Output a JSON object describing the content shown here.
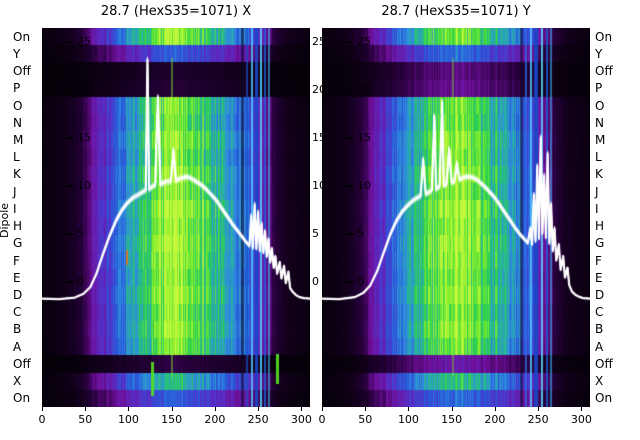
{
  "dipole_label": "Dipole",
  "row_labels": [
    "On",
    "Y",
    "Off",
    "P",
    "O",
    "N",
    "M",
    "L",
    "K",
    "J",
    "I",
    "H",
    "G",
    "F",
    "E",
    "D",
    "C",
    "B",
    "A",
    "Off",
    "X",
    "On"
  ],
  "chart_data": [
    {
      "type": "heatmap",
      "title": "28.7 (HexS35=1071) X",
      "xlim": [
        0,
        310
      ],
      "ylim": [
        -13.0,
        26.5
      ],
      "x_ticks": [
        0,
        50,
        100,
        150,
        200,
        250,
        300
      ],
      "y_ticks": [
        25,
        20,
        15,
        10,
        5,
        0
      ],
      "show_right_outer_yticks": true,
      "colormap": [
        "#050008",
        "#26003a",
        "#70109c",
        "#5530c8",
        "#2858d8",
        "#2f8ce0",
        "#28b49a",
        "#2ed24c",
        "#84ee2e",
        "#c8f83c"
      ],
      "column_profile": [
        0.02,
        0.02,
        0.03,
        0.05,
        0.08,
        0.14,
        0.28,
        0.33,
        0.42,
        0.52,
        0.6,
        0.68,
        0.76,
        0.85,
        0.93,
        1.0,
        0.98,
        0.94,
        0.88,
        0.8,
        0.73,
        0.67,
        0.61,
        0.55,
        0.46,
        0.33,
        0.22,
        0.12,
        0.06,
        0.04,
        0.03,
        0.02
      ],
      "row_profile": [
        0.95,
        0.45,
        0.08,
        0.1,
        0.92,
        0.88,
        0.95,
        0.9,
        0.97,
        0.93,
        1.0,
        0.96,
        1.0,
        0.97,
        0.94,
        0.98,
        0.92,
        0.96,
        0.9,
        0.12,
        0.7,
        0.45
      ],
      "streaks": [
        {
          "x": 127,
          "w": 3,
          "color": "#55e020",
          "alpha": 0.9,
          "y0": 0.88,
          "y1": 0.97
        },
        {
          "x": 150,
          "w": 2,
          "color": "#8af030",
          "alpha": 0.45,
          "y0": 0.08,
          "y1": 0.92
        },
        {
          "x": 98,
          "w": 2,
          "color": "#e07818",
          "alpha": 0.9,
          "y0": 0.585,
          "y1": 0.625
        },
        {
          "x": 231,
          "w": 3,
          "color": "#0c0626",
          "alpha": 0.55,
          "y0": 0,
          "y1": 1
        },
        {
          "x": 237,
          "w": 2,
          "color": "#1a50c8",
          "alpha": 0.7,
          "y0": 0,
          "y1": 1
        },
        {
          "x": 243,
          "w": 2,
          "color": "#4fc8ff",
          "alpha": 0.85,
          "y0": 0,
          "y1": 1
        },
        {
          "x": 248,
          "w": 3,
          "color": "#1848c8",
          "alpha": 0.9,
          "y0": 0,
          "y1": 1
        },
        {
          "x": 253,
          "w": 2,
          "color": "#55d8ff",
          "alpha": 0.85,
          "y0": 0,
          "y1": 1
        },
        {
          "x": 258,
          "w": 2,
          "color": "#2060d8",
          "alpha": 0.8,
          "y0": 0,
          "y1": 1
        },
        {
          "x": 263,
          "w": 2,
          "color": "#48b8f0",
          "alpha": 0.6,
          "y0": 0,
          "y1": 1
        },
        {
          "x": 272,
          "w": 3,
          "color": "#50dc20",
          "alpha": 0.95,
          "y0": 0.86,
          "y1": 0.94
        }
      ],
      "curve": {
        "color": "#ffffff",
        "points": [
          [
            0,
            -1.7
          ],
          [
            20,
            -1.75
          ],
          [
            38,
            -1.6
          ],
          [
            48,
            -1.2
          ],
          [
            56,
            -0.5
          ],
          [
            63,
            0.9
          ],
          [
            70,
            2.8
          ],
          [
            78,
            4.8
          ],
          [
            86,
            6.5
          ],
          [
            93,
            7.6
          ],
          [
            99,
            8.3
          ],
          [
            105,
            8.8
          ],
          [
            111,
            9.1
          ],
          [
            116,
            9.4
          ],
          [
            120,
            9.6
          ],
          [
            122,
            23.2
          ],
          [
            124,
            9.7
          ],
          [
            128,
            10.0
          ],
          [
            131,
            10.1
          ],
          [
            134,
            19.3
          ],
          [
            137,
            10.2
          ],
          [
            141,
            10.4
          ],
          [
            145,
            10.5
          ],
          [
            149,
            10.5
          ],
          [
            152,
            13.8
          ],
          [
            155,
            10.6
          ],
          [
            159,
            10.8
          ],
          [
            163,
            10.9
          ],
          [
            167,
            11.0
          ],
          [
            171,
            10.9
          ],
          [
            175,
            10.7
          ],
          [
            180,
            10.4
          ],
          [
            185,
            10.1
          ],
          [
            190,
            9.7
          ],
          [
            196,
            9.1
          ],
          [
            202,
            8.5
          ],
          [
            208,
            7.7
          ],
          [
            214,
            6.9
          ],
          [
            220,
            6.1
          ],
          [
            226,
            5.4
          ],
          [
            231,
            4.8
          ],
          [
            236,
            4.2
          ],
          [
            240,
            3.8
          ],
          [
            242,
            6.9
          ],
          [
            244,
            3.6
          ],
          [
            246,
            8.1
          ],
          [
            248,
            3.5
          ],
          [
            250,
            7.3
          ],
          [
            252,
            3.3
          ],
          [
            254,
            6.1
          ],
          [
            256,
            3.1
          ],
          [
            258,
            5.3
          ],
          [
            260,
            2.7
          ],
          [
            262,
            4.5
          ],
          [
            264,
            2.1
          ],
          [
            266,
            3.5
          ],
          [
            268,
            1.5
          ],
          [
            270,
            2.7
          ],
          [
            272,
            0.9
          ],
          [
            275,
            2.1
          ],
          [
            277,
            0.4
          ],
          [
            280,
            1.7
          ],
          [
            282,
            -0.1
          ],
          [
            285,
            1.1
          ],
          [
            287,
            -0.6
          ],
          [
            290,
            -1.0
          ],
          [
            294,
            -1.35
          ],
          [
            298,
            -1.55
          ],
          [
            303,
            -1.65
          ],
          [
            310,
            -1.7
          ]
        ]
      }
    },
    {
      "type": "heatmap",
      "title": "28.7 (HexS35=1071) Y",
      "xlim": [
        0,
        310
      ],
      "ylim": [
        -13.0,
        26.5
      ],
      "x_ticks": [
        0,
        50,
        100,
        150,
        200,
        250,
        300
      ],
      "y_ticks": [
        25,
        20,
        15,
        10,
        5,
        0
      ],
      "show_right_outer_yticks": false,
      "colormap": [
        "#050008",
        "#26003a",
        "#70109c",
        "#5530c8",
        "#2858d8",
        "#2f8ce0",
        "#28b49a",
        "#2ed24c",
        "#84ee2e",
        "#c8f83c"
      ],
      "column_profile": [
        0.02,
        0.02,
        0.03,
        0.05,
        0.09,
        0.15,
        0.3,
        0.35,
        0.45,
        0.55,
        0.63,
        0.7,
        0.78,
        0.86,
        0.94,
        1.0,
        0.99,
        0.95,
        0.89,
        0.81,
        0.74,
        0.68,
        0.61,
        0.53,
        0.43,
        0.3,
        0.21,
        0.12,
        0.06,
        0.04,
        0.03,
        0.02
      ],
      "row_profile": [
        0.9,
        0.5,
        0.2,
        0.22,
        0.9,
        0.88,
        0.95,
        0.92,
        0.97,
        0.93,
        1.0,
        0.96,
        1.0,
        0.97,
        0.94,
        0.98,
        0.92,
        0.96,
        0.9,
        0.26,
        0.75,
        0.5
      ],
      "streaks": [
        {
          "x": 152,
          "w": 2,
          "color": "#80ee30",
          "alpha": 0.4,
          "y0": 0.08,
          "y1": 0.92
        },
        {
          "x": 230,
          "w": 3,
          "color": "#0c0626",
          "alpha": 0.5,
          "y0": 0,
          "y1": 1
        },
        {
          "x": 236,
          "w": 2,
          "color": "#2a70e8",
          "alpha": 0.75,
          "y0": 0,
          "y1": 1
        },
        {
          "x": 242,
          "w": 2,
          "color": "#50c8ff",
          "alpha": 0.85,
          "y0": 0,
          "y1": 1
        },
        {
          "x": 248,
          "w": 4,
          "color": "#1848c8",
          "alpha": 0.9,
          "y0": 0,
          "y1": 1
        },
        {
          "x": 254,
          "w": 2,
          "color": "#58d8ff",
          "alpha": 0.85,
          "y0": 0,
          "y1": 1
        },
        {
          "x": 260,
          "w": 2,
          "color": "#2060d8",
          "alpha": 0.8,
          "y0": 0,
          "y1": 1
        },
        {
          "x": 265,
          "w": 2,
          "color": "#40b0f0",
          "alpha": 0.6,
          "y0": 0,
          "y1": 1
        }
      ],
      "curve": {
        "color": "#ffffff",
        "points": [
          [
            0,
            -1.7
          ],
          [
            20,
            -1.75
          ],
          [
            38,
            -1.55
          ],
          [
            48,
            -1.1
          ],
          [
            56,
            -0.3
          ],
          [
            64,
            1.2
          ],
          [
            71,
            3.0
          ],
          [
            79,
            5.0
          ],
          [
            86,
            6.4
          ],
          [
            93,
            7.4
          ],
          [
            99,
            8.0
          ],
          [
            105,
            8.5
          ],
          [
            110,
            8.8
          ],
          [
            114,
            9.0
          ],
          [
            117,
            12.8
          ],
          [
            120,
            9.2
          ],
          [
            124,
            9.4
          ],
          [
            127,
            9.6
          ],
          [
            130,
            17.3
          ],
          [
            132,
            9.7
          ],
          [
            136,
            10.0
          ],
          [
            139,
            18.8
          ],
          [
            141,
            10.1
          ],
          [
            144,
            10.2
          ],
          [
            147,
            13.9
          ],
          [
            150,
            10.4
          ],
          [
            153,
            10.5
          ],
          [
            156,
            12.4
          ],
          [
            159,
            10.7
          ],
          [
            163,
            10.9
          ],
          [
            167,
            11.0
          ],
          [
            171,
            11.0
          ],
          [
            175,
            10.9
          ],
          [
            179,
            10.7
          ],
          [
            184,
            10.3
          ],
          [
            189,
            9.9
          ],
          [
            194,
            9.4
          ],
          [
            200,
            8.8
          ],
          [
            206,
            8.0
          ],
          [
            212,
            7.2
          ],
          [
            218,
            6.4
          ],
          [
            224,
            5.6
          ],
          [
            229,
            5.0
          ],
          [
            234,
            4.5
          ],
          [
            238,
            4.1
          ],
          [
            241,
            5.6
          ],
          [
            243,
            4.0
          ],
          [
            245,
            9.1
          ],
          [
            247,
            4.3
          ],
          [
            249,
            12.1
          ],
          [
            251,
            4.6
          ],
          [
            253,
            15.1
          ],
          [
            255,
            5.1
          ],
          [
            257,
            11.1
          ],
          [
            259,
            4.7
          ],
          [
            261,
            13.4
          ],
          [
            263,
            4.1
          ],
          [
            265,
            8.1
          ],
          [
            267,
            3.3
          ],
          [
            269,
            5.6
          ],
          [
            271,
            2.3
          ],
          [
            274,
            3.9
          ],
          [
            276,
            1.3
          ],
          [
            279,
            2.7
          ],
          [
            281,
            0.5
          ],
          [
            284,
            1.5
          ],
          [
            286,
            -0.3
          ],
          [
            289,
            -0.95
          ],
          [
            293,
            -1.3
          ],
          [
            297,
            -1.5
          ],
          [
            302,
            -1.65
          ],
          [
            310,
            -1.7
          ]
        ]
      }
    }
  ]
}
